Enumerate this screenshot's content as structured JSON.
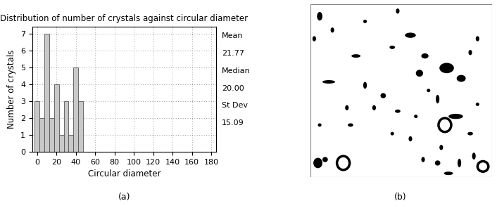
{
  "chart_data": {
    "type": "histogram",
    "title": "Distribution of number of crystals against circular diameter",
    "x_label": "Circular diameter",
    "y_label": "Number of crystals",
    "bins": [
      -2.5,
      2.5,
      7.5,
      12.5,
      17.5,
      22.5,
      27.5,
      32.5,
      37.5,
      42.5,
      47.5
    ],
    "counts": [
      3,
      2,
      7,
      2,
      4,
      1,
      3,
      1,
      5,
      3
    ],
    "color": "#c8c8c8",
    "xlim": [
      -5,
      185
    ],
    "xticks": [
      0,
      20,
      40,
      60,
      80,
      100,
      120,
      140,
      160,
      180
    ],
    "ylim": [
      0,
      7.4
    ],
    "yticks": [
      0,
      1,
      2,
      3,
      4,
      5,
      6,
      7
    ],
    "grid": true,
    "statistics": [
      {
        "name": "Mean",
        "value": 21.77,
        "label": "21.77"
      },
      {
        "name": "Median",
        "value": 20.0,
        "label": "20.00"
      },
      {
        "name": "St Dev",
        "value": 15.09,
        "label": "15.09"
      }
    ],
    "panel_label": "(a)"
  },
  "image": {
    "panel_label": "(b)"
  }
}
